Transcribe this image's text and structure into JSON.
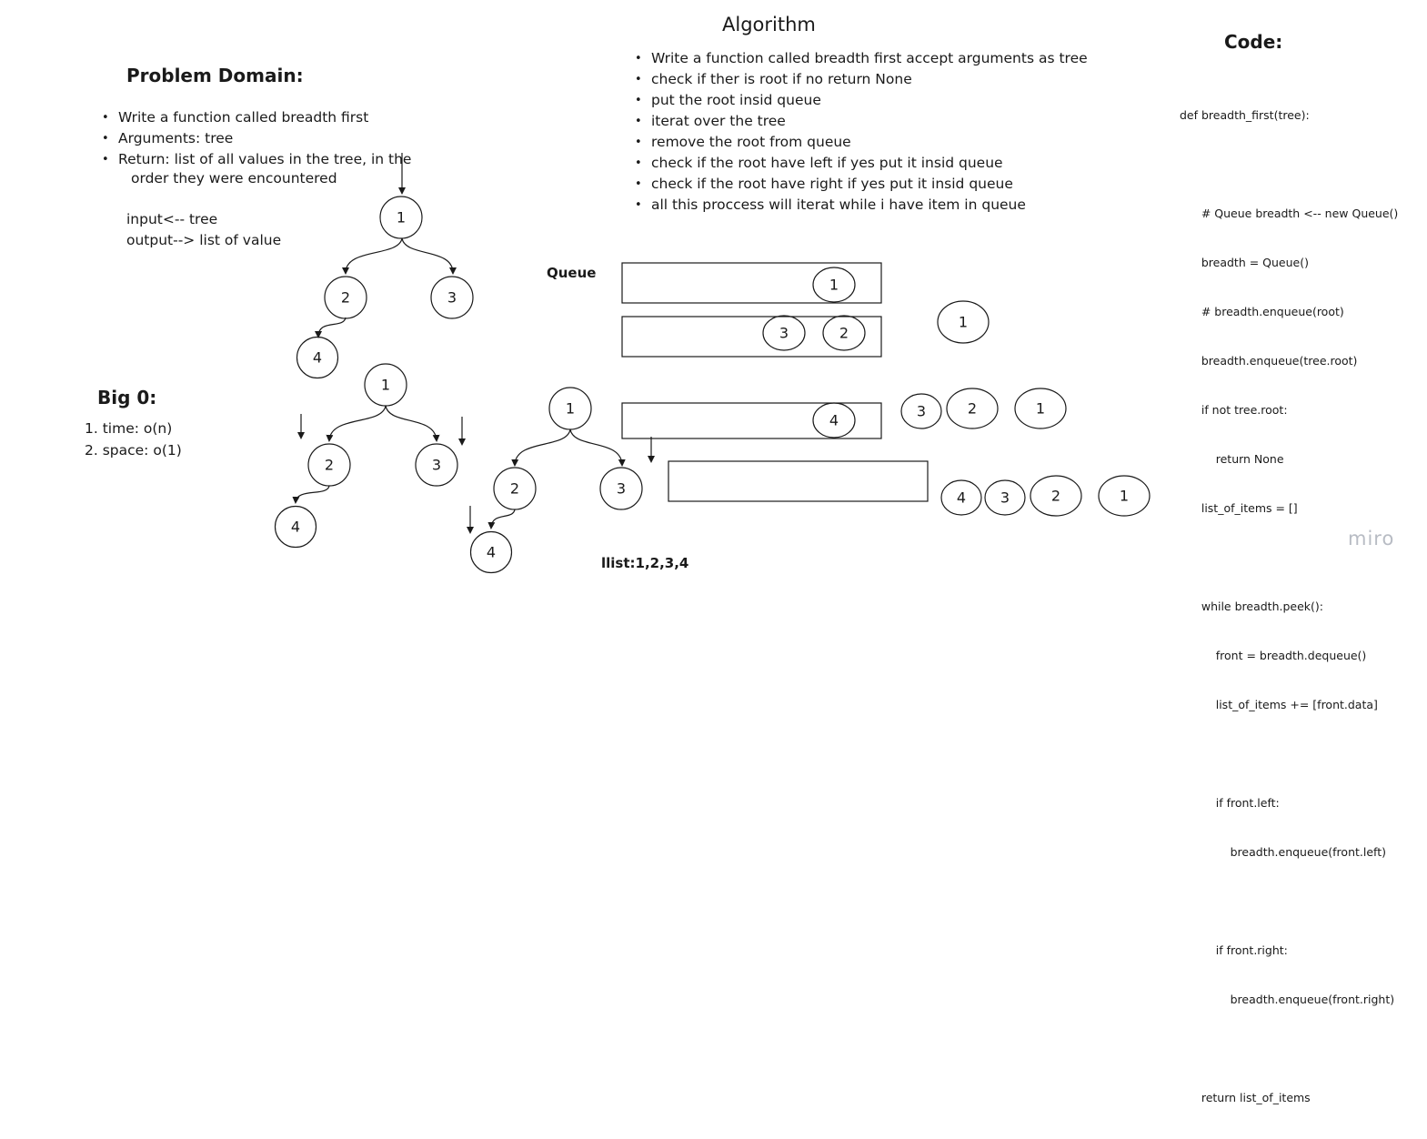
{
  "problem_domain": {
    "title": "Problem Domain:",
    "bullets": [
      "Write a function called breadth first",
      "Arguments: tree",
      "Return: list of all values in the tree, in the"
    ],
    "bullet_continuation": "order they were encountered",
    "io_input": "input<-- tree",
    "io_output": "output--> list of value"
  },
  "big_o": {
    "title": "Big 0:",
    "items": [
      "1. time: o(n)",
      "2. space: o(1)"
    ]
  },
  "algorithm": {
    "title": "Algorithm",
    "steps": [
      "Write a function called breadth first accept arguments as tree",
      "check if ther is root if no return None",
      "put the root insid queue",
      "iterat over the tree",
      "remove the root from queue",
      "check if the root have left if yes put it insid queue",
      "check if the root have right if yes put it insid queue",
      "all this proccess will iterat while i have item in queue"
    ]
  },
  "code": {
    "title": "Code:",
    "lines": [
      "def breadth_first(tree):",
      "",
      "      # Queue breadth <-- new Queue()",
      "      breadth = Queue()",
      "      # breadth.enqueue(root)",
      "      breadth.enqueue(tree.root)",
      "      if not tree.root:",
      "          return None",
      "      list_of_items = []",
      "",
      "      while breadth.peek():",
      "          front = breadth.dequeue()",
      "          list_of_items += [front.data]",
      "",
      "          if front.left:",
      "              breadth.enqueue(front.left)",
      "",
      "          if front.right:",
      "              breadth.enqueue(front.right)",
      "",
      "      return list_of_items"
    ]
  },
  "queue_label": "Queue",
  "result_label": "llist:1,2,3,4",
  "watermark": "miro",
  "node_values": {
    "n1": "1",
    "n2": "2",
    "n3": "3",
    "n4": "4"
  }
}
